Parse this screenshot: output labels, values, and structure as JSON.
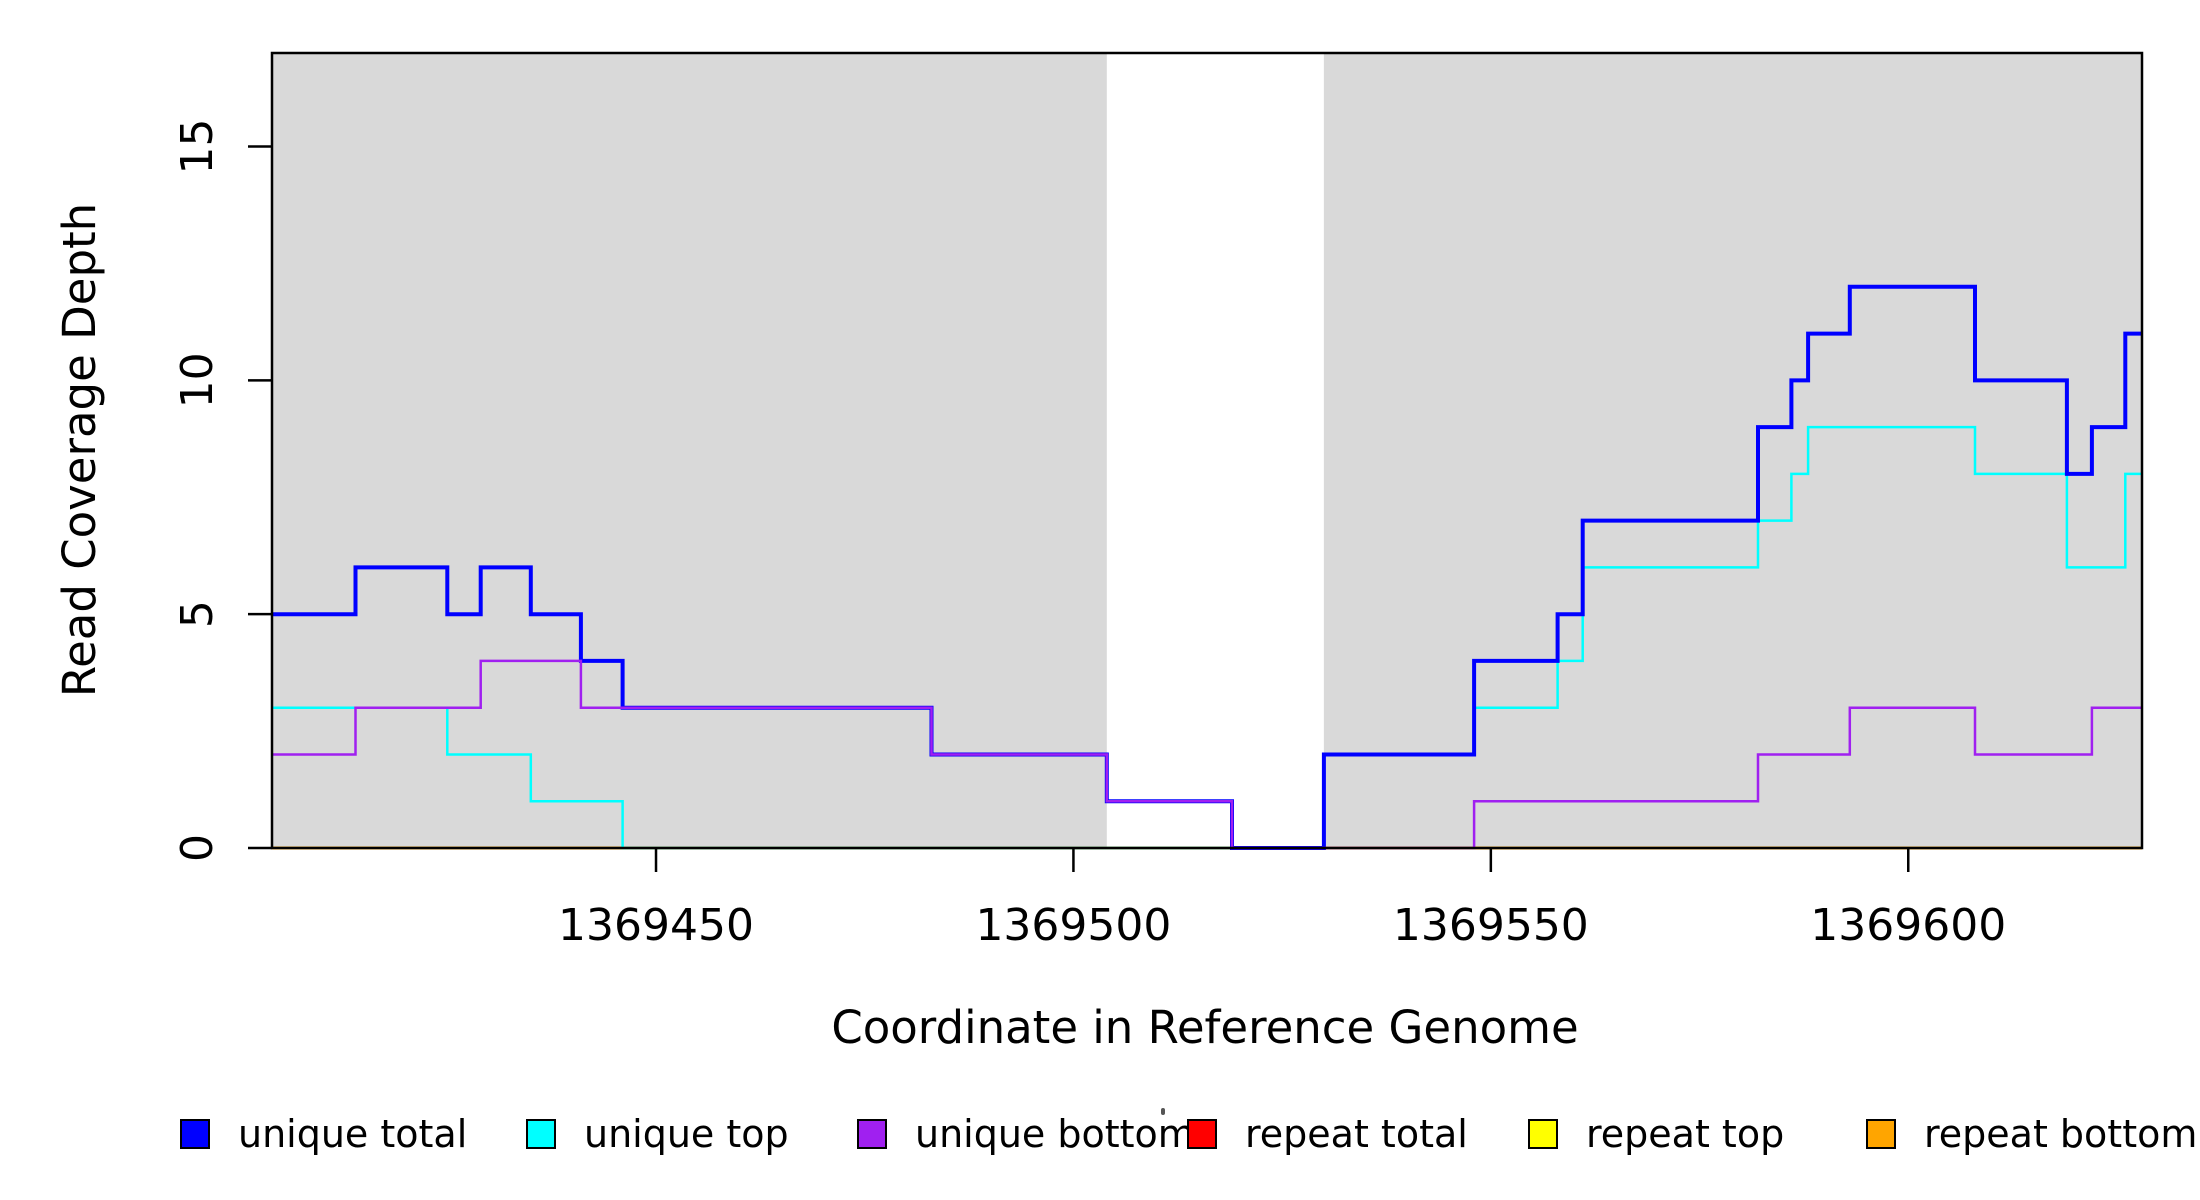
{
  "chart_data": {
    "type": "line",
    "subtype": "step-coverage",
    "xlabel": "Coordinate in Reference Genome",
    "ylabel": "Read Coverage Depth",
    "x_range": [
      1369404,
      1369628
    ],
    "y_range": [
      0,
      17
    ],
    "x_ticks": [
      "1369450",
      "1369500",
      "1369550",
      "1369600"
    ],
    "x_tick_values": [
      1369450,
      1369500,
      1369550,
      1369600
    ],
    "y_ticks": [
      "0",
      "5",
      "10",
      "15"
    ],
    "y_tick_values": [
      0,
      5,
      10,
      15
    ],
    "grid": false,
    "shade_color": "#D9D9D9",
    "shaded_regions": [
      [
        1369404,
        1369504
      ],
      [
        1369530,
        1369628
      ]
    ],
    "series": [
      {
        "name": "repeat total",
        "color": "#FF0000",
        "width": 2,
        "steps": [
          [
            1369404,
            0
          ]
        ]
      },
      {
        "name": "repeat top",
        "color": "#FFFF00",
        "width": 2,
        "steps": [
          [
            1369404,
            0
          ]
        ]
      },
      {
        "name": "repeat bottom",
        "color": "#FFA500",
        "width": 3,
        "steps": [
          [
            1369404,
            0
          ]
        ]
      },
      {
        "name": "unique top",
        "color": "#00FFFF",
        "width": 2.5,
        "steps": [
          [
            1369404,
            3
          ],
          [
            1369425,
            2
          ],
          [
            1369435,
            1
          ],
          [
            1369446,
            0
          ],
          [
            1369530,
            2
          ],
          [
            1369548,
            3
          ],
          [
            1369558,
            4
          ],
          [
            1369561,
            6
          ],
          [
            1369582,
            7
          ],
          [
            1369586,
            8
          ],
          [
            1369588,
            9
          ],
          [
            1369608,
            8
          ],
          [
            1369619,
            6
          ],
          [
            1369626,
            8
          ]
        ]
      },
      {
        "name": "unique total",
        "color": "#0000FF",
        "width": 4,
        "steps": [
          [
            1369404,
            5
          ],
          [
            1369414,
            6
          ],
          [
            1369425,
            5
          ],
          [
            1369429,
            6
          ],
          [
            1369435,
            5
          ],
          [
            1369441,
            4
          ],
          [
            1369446,
            3
          ],
          [
            1369483,
            2
          ],
          [
            1369504,
            1
          ],
          [
            1369519,
            0
          ],
          [
            1369530,
            2
          ],
          [
            1369548,
            4
          ],
          [
            1369558,
            5
          ],
          [
            1369561,
            7
          ],
          [
            1369582,
            9
          ],
          [
            1369586,
            10
          ],
          [
            1369588,
            11
          ],
          [
            1369593,
            12
          ],
          [
            1369608,
            10
          ],
          [
            1369619,
            8
          ],
          [
            1369622,
            9
          ],
          [
            1369626,
            11
          ]
        ]
      },
      {
        "name": "unique bottom",
        "color": "#A020F0",
        "width": 2.5,
        "steps": [
          [
            1369404,
            2
          ],
          [
            1369414,
            3
          ],
          [
            1369429,
            4
          ],
          [
            1369441,
            3
          ],
          [
            1369483,
            2
          ],
          [
            1369504,
            1
          ],
          [
            1369519,
            0
          ],
          [
            1369548,
            1
          ],
          [
            1369582,
            2
          ],
          [
            1369593,
            3
          ],
          [
            1369608,
            2
          ],
          [
            1369622,
            3
          ]
        ]
      }
    ],
    "legend_position": "bottom",
    "legend": [
      {
        "label": "unique total",
        "color": "#0000FF"
      },
      {
        "label": "unique top",
        "color": "#00FFFF"
      },
      {
        "label": "unique bottom",
        "color": "#A020F0"
      },
      {
        "label": "repeat total",
        "color": "#FF0000"
      },
      {
        "label": "repeat top",
        "color": "#FFFF00"
      },
      {
        "label": "repeat bottom",
        "color": "#FFA500"
      }
    ]
  }
}
